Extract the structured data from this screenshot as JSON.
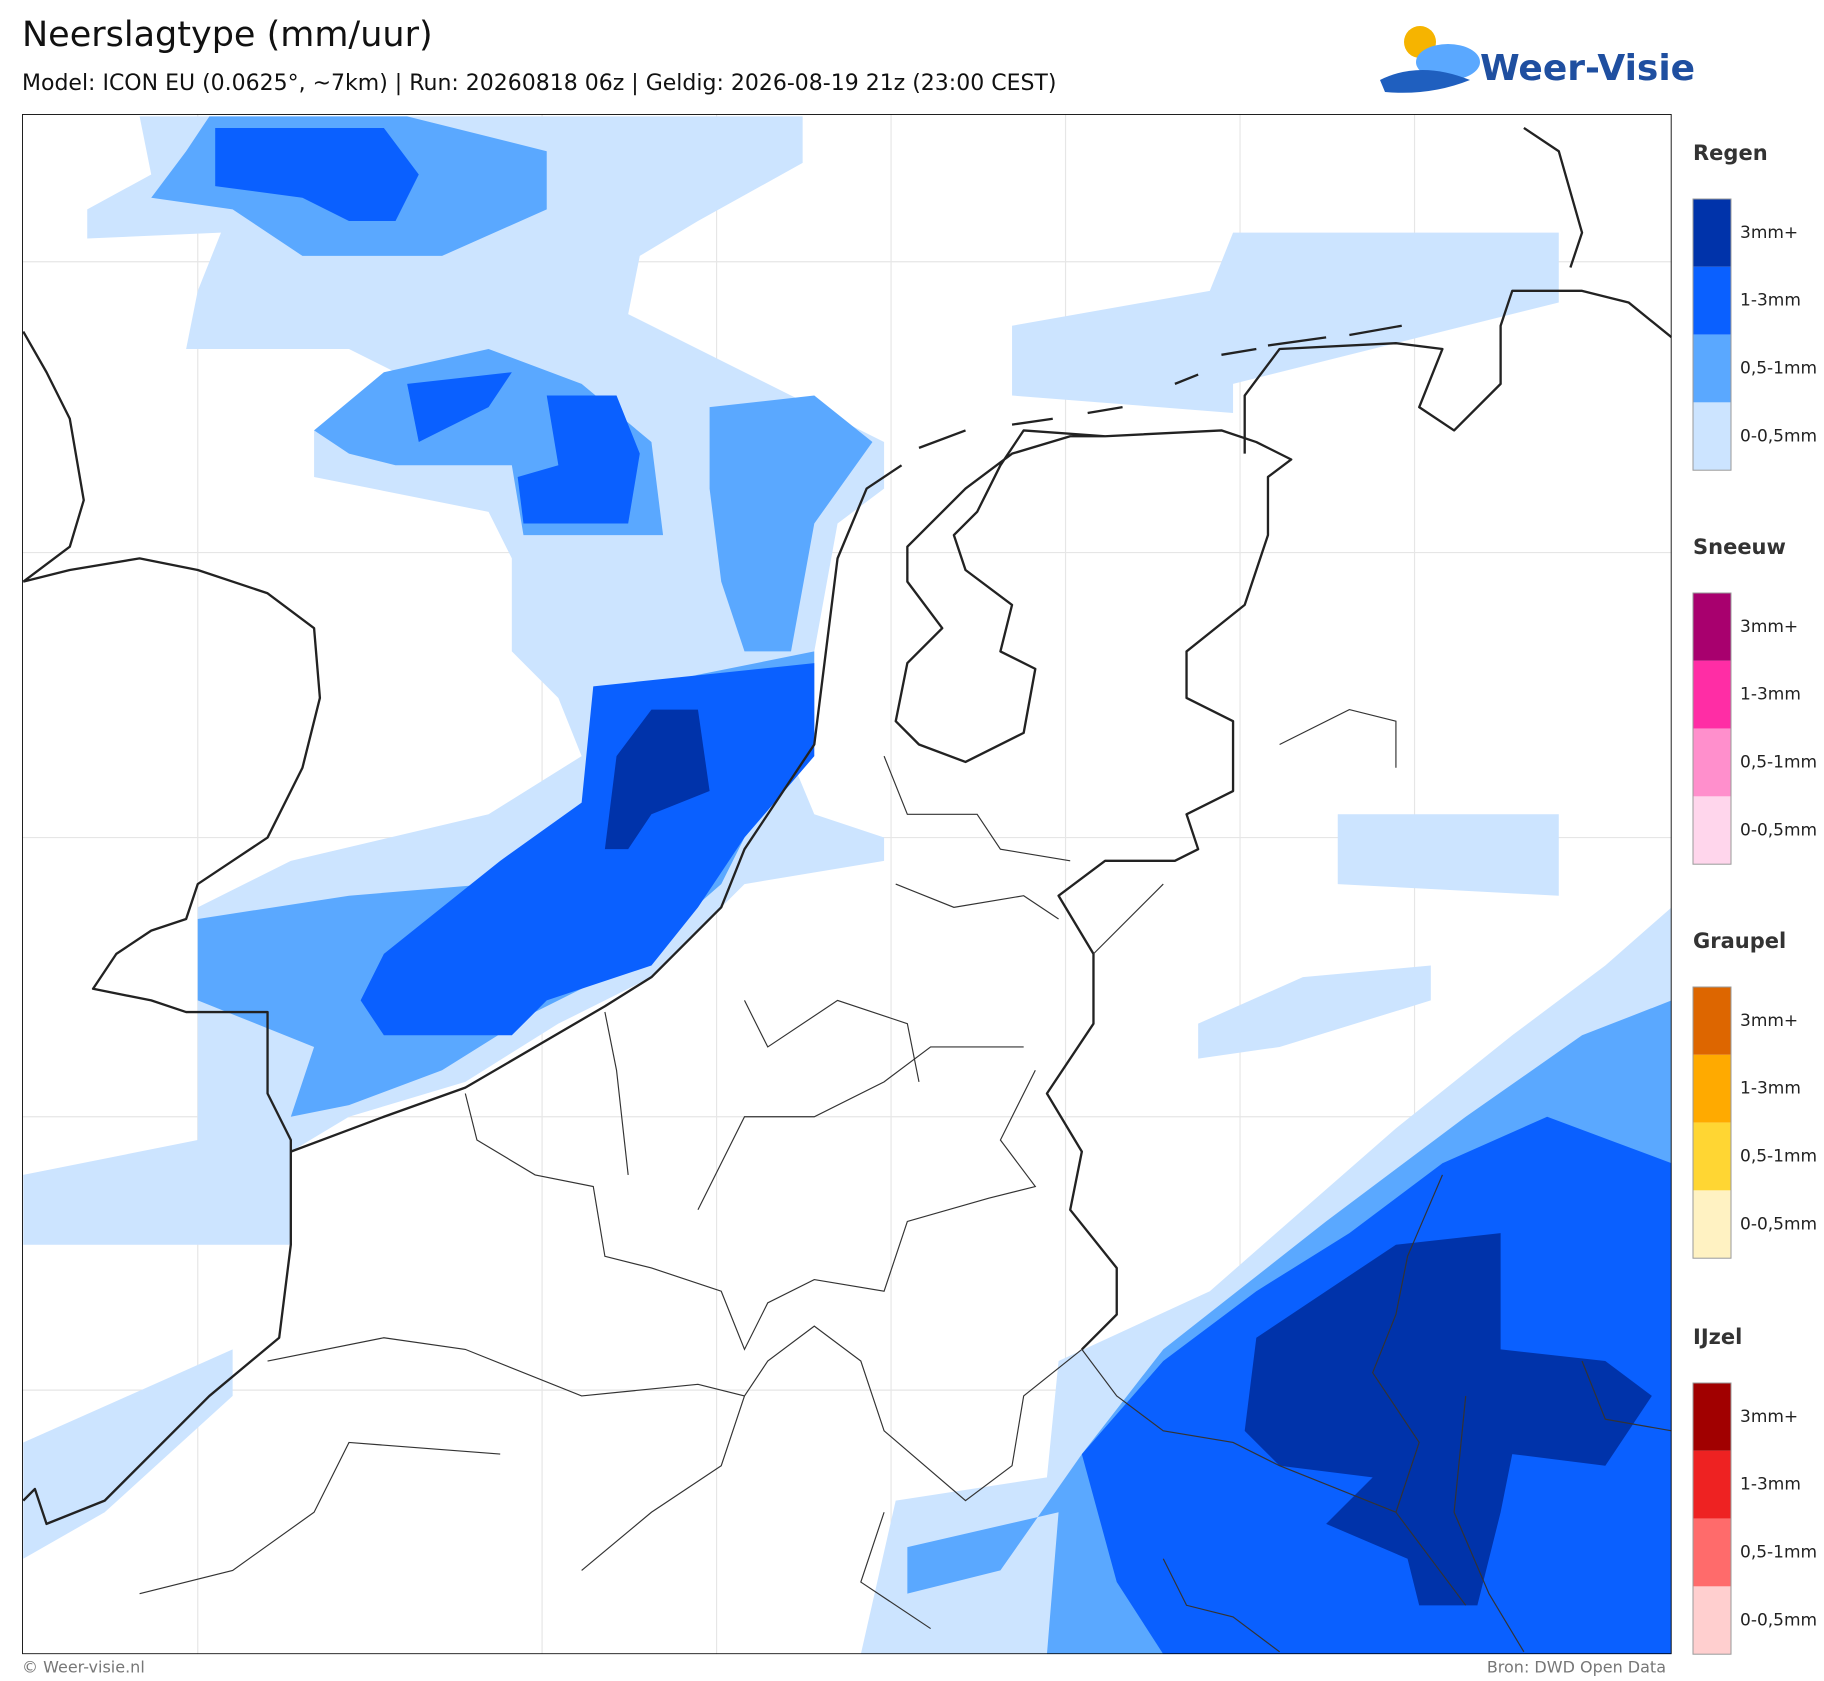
{
  "header": {
    "title": "Neerslagtype (mm/uur)",
    "subtitle": "Model: ICON EU (0.0625°, ~7km)  |  Run: 20260818 06z  |  Geldig: 2026-08-19 21z (23:00 CEST)",
    "logo": "Weer-Visie"
  },
  "legend": [
    {
      "title": "Regen",
      "items": [
        {
          "label": "3mm+",
          "color": "#0033aa"
        },
        {
          "label": "1-3mm",
          "color": "#0a60ff"
        },
        {
          "label": "0,5-1mm",
          "color": "#5aa8ff"
        },
        {
          "label": "0-0,5mm",
          "color": "#cce4ff"
        }
      ]
    },
    {
      "title": "Sneeuw",
      "items": [
        {
          "label": "3mm+",
          "color": "#a8006e"
        },
        {
          "label": "1-3mm",
          "color": "#ff2da5"
        },
        {
          "label": "0,5-1mm",
          "color": "#ff8fcc"
        },
        {
          "label": "0-0,5mm",
          "color": "#ffd6ec"
        }
      ]
    },
    {
      "title": "Graupel",
      "items": [
        {
          "label": "3mm+",
          "color": "#dd6600"
        },
        {
          "label": "1-3mm",
          "color": "#ffaa00"
        },
        {
          "label": "0,5-1mm",
          "color": "#ffd633"
        },
        {
          "label": "0-0,5mm",
          "color": "#fff2c2"
        }
      ]
    },
    {
      "title": "IJzel",
      "items": [
        {
          "label": "3mm+",
          "color": "#a10000"
        },
        {
          "label": "1-3mm",
          "color": "#ee2222"
        },
        {
          "label": "0,5-1mm",
          "color": "#ff6b6b"
        },
        {
          "label": "0-0,5mm",
          "color": "#ffcfcf"
        }
      ]
    }
  ],
  "footer": {
    "copyright": "© Weer-visie.nl",
    "source": "Bron: DWD Open Data"
  }
}
